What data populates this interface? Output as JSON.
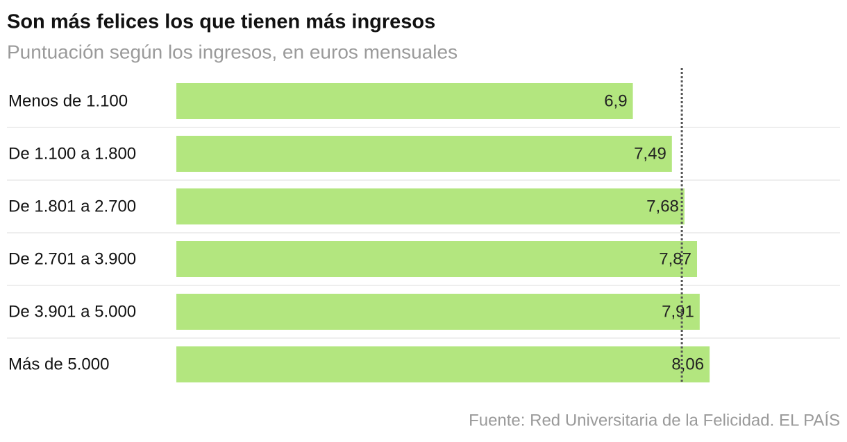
{
  "chart_data": {
    "type": "bar",
    "orientation": "horizontal",
    "title": "Son más felices los que tienen más ingresos",
    "subtitle": "Puntuación según los ingresos, en euros mensuales",
    "source": "Fuente: Red Universitaria de la Felicidad. EL PAÍS",
    "categories": [
      "Menos de 1.100",
      "De 1.100 a 1.800",
      "De 1.801 a 2.700",
      "De 2.701 a 3.900",
      "De 3.901 a 5.000",
      "Más de 5.000"
    ],
    "values": [
      6.9,
      7.49,
      7.68,
      7.87,
      7.91,
      8.06
    ],
    "value_labels": [
      "6,9",
      "7,49",
      "7,68",
      "7,87",
      "7,91",
      "8,06"
    ],
    "color": "#b3e67f",
    "xlim": [
      0,
      10
    ],
    "reference_line": 7.64
  }
}
